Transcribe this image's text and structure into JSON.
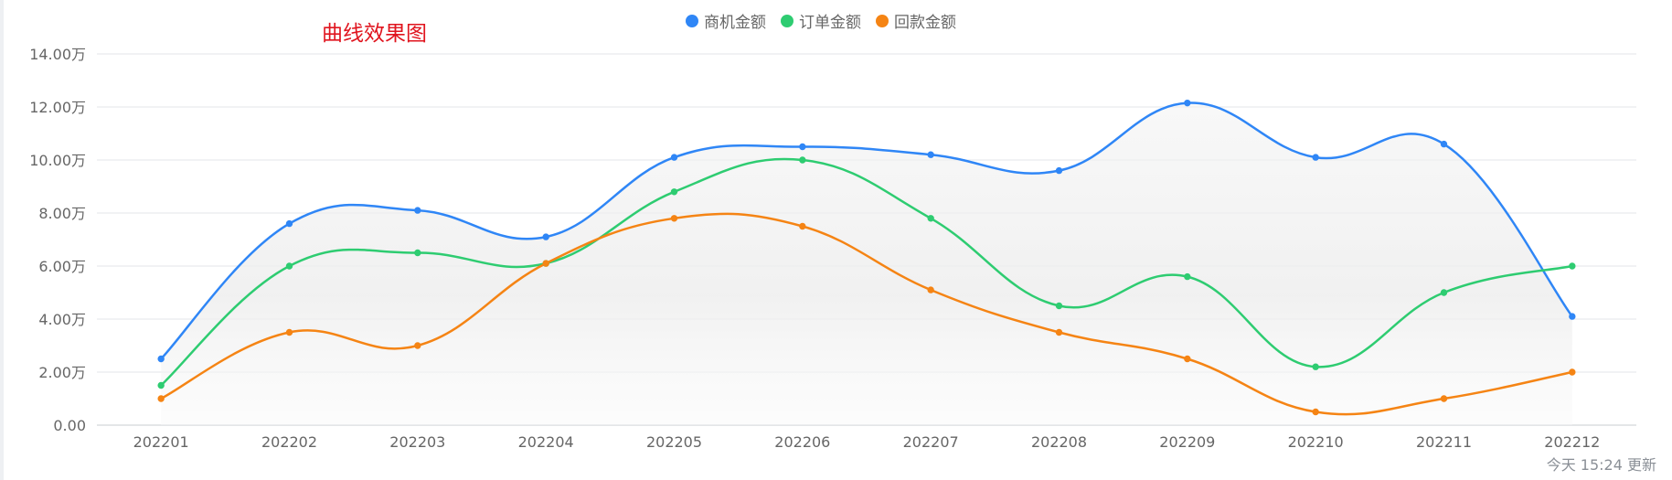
{
  "title": "曲线效果图",
  "update_text": "今天 15:24 更新",
  "colors": {
    "series1": "#2f86f6",
    "series2": "#2ecc71",
    "series3": "#f58414",
    "grid": "#e3e6ea",
    "axis_text": "#666666"
  },
  "chart_data": {
    "type": "line",
    "smooth": true,
    "categories": [
      "202201",
      "202202",
      "202203",
      "202204",
      "202205",
      "202206",
      "202207",
      "202208",
      "202209",
      "202210",
      "202211",
      "202212"
    ],
    "y_tick_labels": [
      "0.00",
      "2.00万",
      "4.00万",
      "6.00万",
      "8.00万",
      "10.00万",
      "12.00万",
      "14.00万"
    ],
    "ylim": [
      0,
      14
    ],
    "y_unit": "万",
    "grid": true,
    "legend_position": "top-center",
    "series": [
      {
        "name": "商机金额",
        "color": "#2f86f6",
        "values": [
          2.5,
          7.6,
          8.1,
          7.1,
          10.1,
          10.5,
          10.2,
          9.6,
          12.15,
          10.1,
          10.6,
          4.1
        ]
      },
      {
        "name": "订单金额",
        "color": "#2ecc71",
        "values": [
          1.5,
          6.0,
          6.5,
          6.1,
          8.8,
          10.0,
          7.8,
          4.5,
          5.6,
          2.2,
          5.0,
          6.0
        ]
      },
      {
        "name": "回款金额",
        "color": "#f58414",
        "values": [
          1.0,
          3.5,
          3.0,
          6.1,
          7.8,
          7.5,
          5.1,
          3.5,
          2.5,
          0.5,
          1.0,
          2.0
        ]
      }
    ]
  }
}
